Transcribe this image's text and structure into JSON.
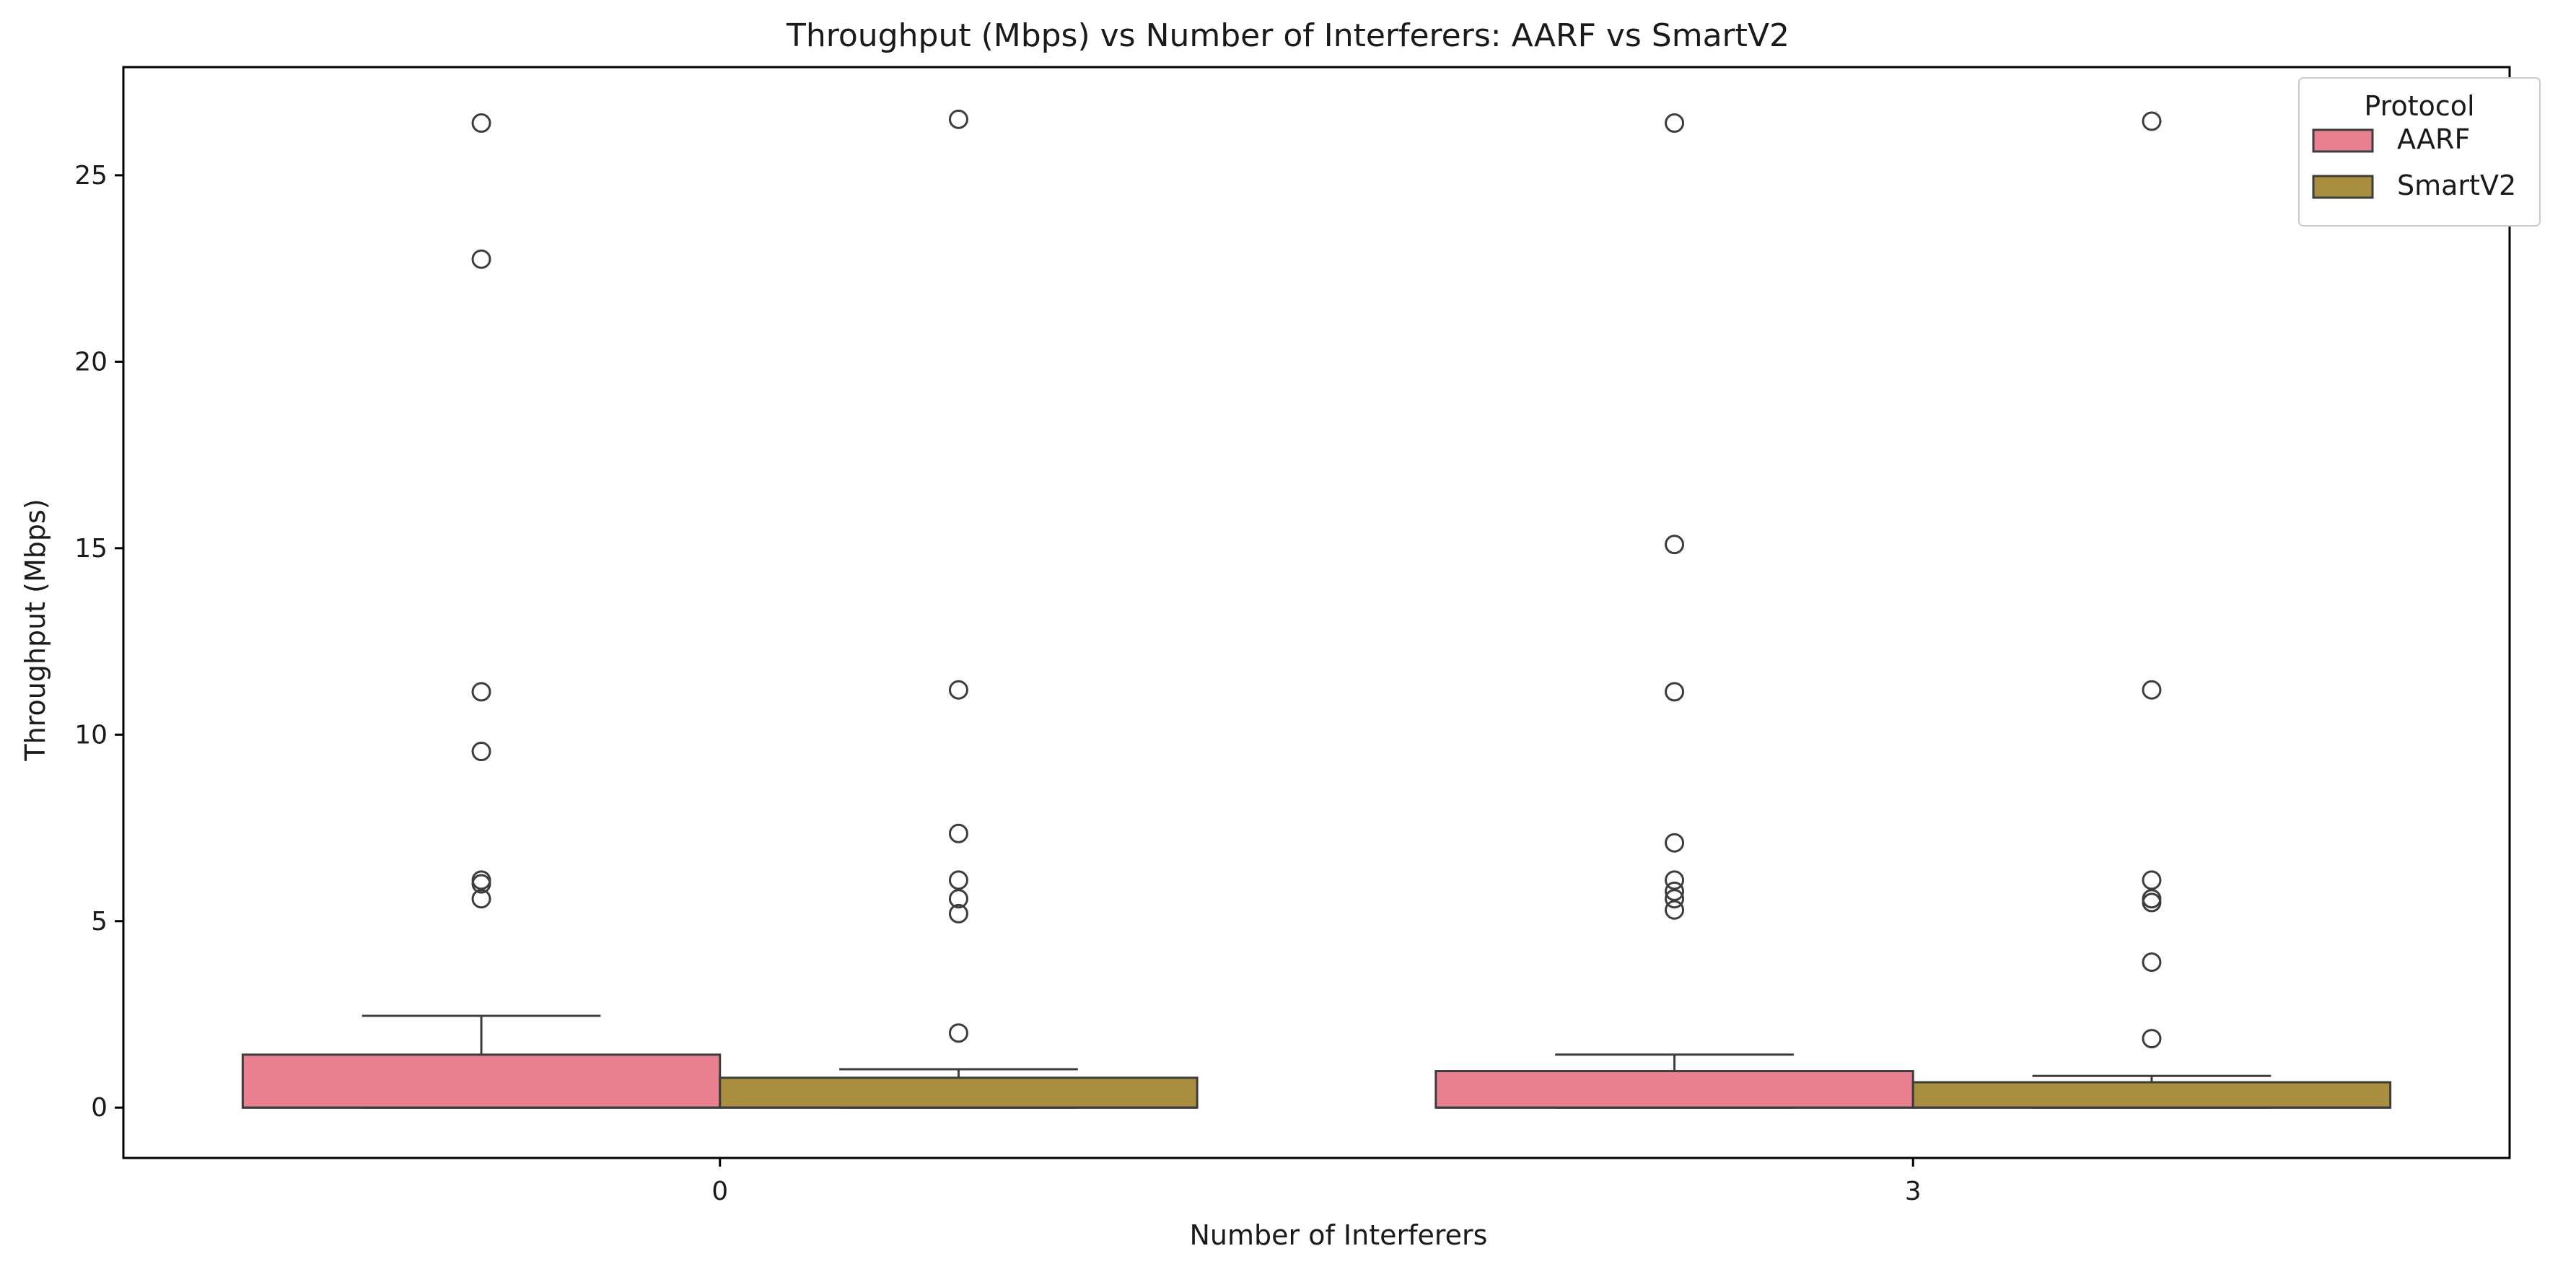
{
  "chart_data": {
    "type": "box",
    "title": "Throughput (Mbps) vs Number of Interferers: AARF vs SmartV2",
    "xlabel": "Number of Interferers",
    "ylabel": "Throughput (Mbps)",
    "categories": [
      "0",
      "3"
    ],
    "ylim": [
      -1.35,
      27.9
    ],
    "yticks": [
      0,
      5,
      10,
      15,
      20,
      25
    ],
    "legend": {
      "title": "Protocol",
      "position": "upper right"
    },
    "series": [
      {
        "name": "AARF",
        "color": "#e8808f",
        "boxes": [
          {
            "category": "0",
            "q1": 0.0,
            "median": 0.0,
            "q3": 1.42,
            "whisker_low": 0.0,
            "whisker_high": 2.46,
            "outliers": [
              26.4,
              22.75,
              11.15,
              9.55,
              6.1,
              6.0,
              5.6
            ]
          },
          {
            "category": "3",
            "q1": 0.0,
            "median": 0.0,
            "q3": 0.98,
            "whisker_low": 0.0,
            "whisker_high": 1.42,
            "outliers": [
              26.4,
              15.1,
              11.15,
              7.1,
              6.1,
              5.8,
              5.6,
              5.3
            ]
          }
        ]
      },
      {
        "name": "SmartV2",
        "color": "#a98e3f",
        "boxes": [
          {
            "category": "0",
            "q1": 0.0,
            "median": 0.0,
            "q3": 0.8,
            "whisker_low": 0.0,
            "whisker_high": 1.03,
            "outliers": [
              26.5,
              11.2,
              7.35,
              6.1,
              5.6,
              5.2,
              2.0
            ]
          },
          {
            "category": "3",
            "q1": 0.0,
            "median": 0.0,
            "q3": 0.68,
            "whisker_low": 0.0,
            "whisker_high": 0.85,
            "outliers": [
              26.45,
              11.2,
              6.1,
              5.6,
              5.5,
              3.9,
              1.85
            ]
          }
        ]
      }
    ],
    "grid": false,
    "edge_color": "#3d3d3d"
  }
}
